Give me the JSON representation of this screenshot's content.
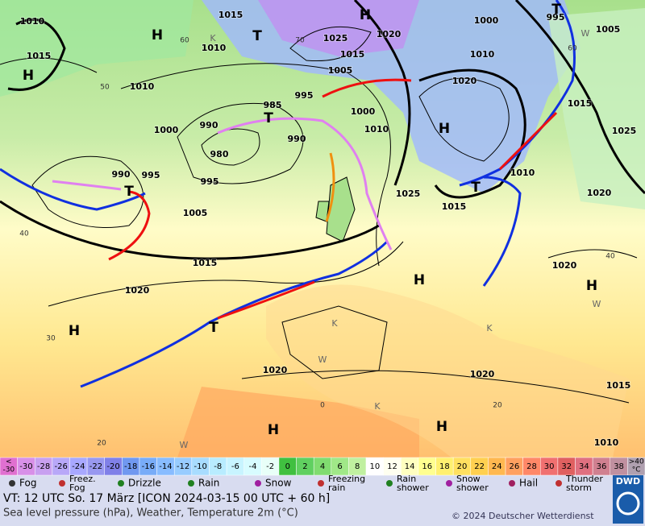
{
  "map": {
    "pressure_labels": [
      1010,
      1015,
      1015,
      1010,
      1025,
      1020,
      1015,
      1005,
      1010,
      1000,
      990,
      985,
      995,
      1000,
      1010,
      990,
      980,
      995,
      990,
      995,
      1005,
      1015,
      1020,
      1025,
      1015,
      1010,
      1020,
      1020,
      1025,
      1015,
      1020,
      1010,
      1000,
      995,
      1005,
      1020,
      1020,
      1015,
      1010
    ],
    "centers": [
      "H",
      "H",
      "T",
      "H",
      "T",
      "T",
      "H",
      "T",
      "H",
      "H",
      "H",
      "T",
      "H",
      "H",
      "T"
    ],
    "grid_labels": [
      60,
      50,
      40,
      30,
      20,
      70,
      60,
      40,
      20,
      0
    ],
    "region_letters": [
      "K",
      "K",
      "W",
      "K",
      "W",
      "W",
      "W",
      "K"
    ]
  },
  "legend": {
    "scale_low": "<",
    "scale_low_value": -30,
    "scale": [
      -30,
      -28,
      -26,
      -24,
      -22,
      -20,
      -18,
      -16,
      -14,
      -12,
      -10,
      -8,
      -6,
      -4,
      -2,
      0,
      2,
      4,
      6,
      8,
      10,
      12,
      14,
      16,
      18,
      20,
      22,
      24,
      26,
      28,
      30,
      32,
      34,
      36,
      38
    ],
    "scale_high": ">40",
    "unit": "°C",
    "colors": [
      "#e070d0",
      "#d890e8",
      "#c8a0f0",
      "#b8a8f8",
      "#a8a8ff",
      "#9898f0",
      "#8080e8",
      "#7098f0",
      "#78acf8",
      "#88bcff",
      "#98ccff",
      "#a8dcff",
      "#b8ecff",
      "#c8f4ff",
      "#d8fcff",
      "#e8fff8",
      "#40c040",
      "#60d060",
      "#80dc70",
      "#a0e888",
      "#c0f0a0",
      "#ffffff",
      "#fffff0",
      "#ffffc0",
      "#ffff90",
      "#fff070",
      "#ffe060",
      "#ffd050",
      "#ffb850",
      "#ffa060",
      "#ff8868",
      "#f07070",
      "#e06060",
      "#e07080",
      "#d08090",
      "#c090a0",
      "#b0a0b0"
    ],
    "weather": [
      "Fog",
      "Freez.\nFog",
      "Drizzle",
      "Rain",
      "Snow",
      "Freezing\nrain",
      "Rain\nshower",
      "Snow\nshower",
      "Hail",
      "Thunder\nstorm"
    ]
  },
  "footer": {
    "valid_time": "VT: 12 UTC So.  17 März [ICON 2024-03-15  00 UTC + 60 h]",
    "description": "Sea level pressure (hPa), Weather, Temperature 2m (°C)",
    "copyright": "© 2024 Deutscher Wetterdienst",
    "logo": "DWD"
  }
}
